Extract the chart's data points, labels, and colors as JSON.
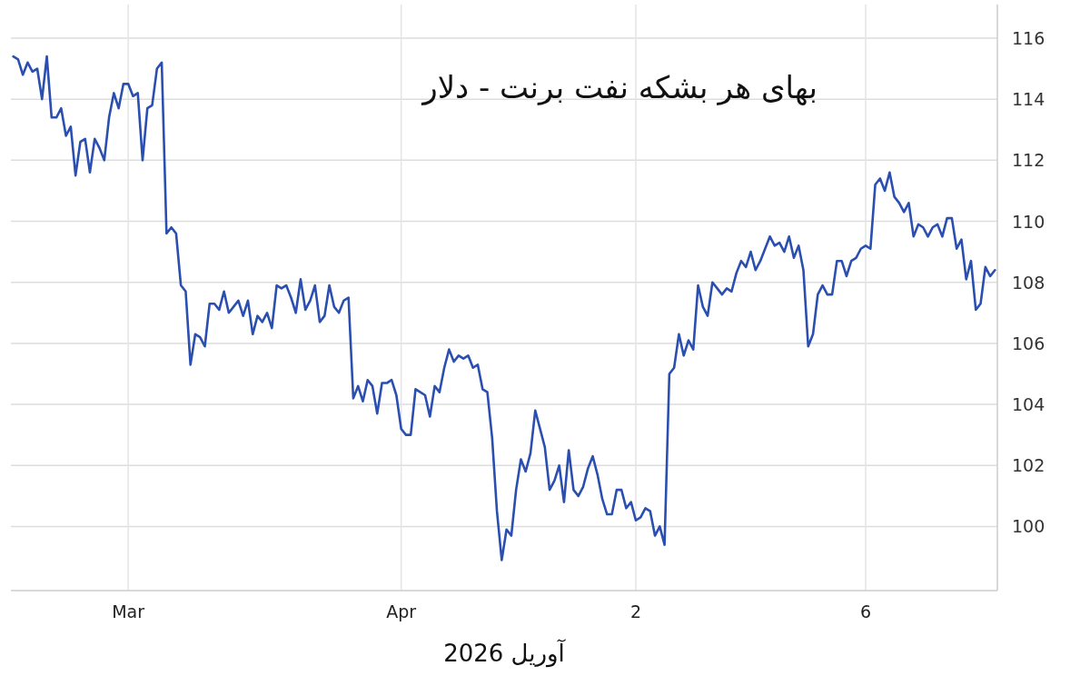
{
  "chart_data": {
    "type": "line",
    "title": "بهای هر بشکه نفت برنت - دلار",
    "xlabel": "آوریل 2026",
    "ylim": [
      97.9,
      117.1
    ],
    "categories": [
      null,
      null,
      null,
      null,
      null,
      null,
      null,
      null,
      null,
      null,
      null,
      null,
      null,
      null,
      null,
      null,
      null,
      null,
      null,
      null,
      null,
      null,
      null,
      null,
      "Mar",
      null,
      null,
      null,
      null,
      null,
      null,
      null,
      null,
      null,
      null,
      null,
      null,
      null,
      null,
      null,
      null,
      null,
      null,
      null,
      null,
      null,
      null,
      null,
      null,
      null,
      null,
      null,
      null,
      null,
      null,
      null,
      null,
      null,
      null,
      null,
      null,
      null,
      null,
      null,
      null,
      null,
      null,
      null,
      null,
      null,
      null,
      null,
      null,
      null,
      null,
      null,
      null,
      null,
      null,
      null,
      null,
      "Apr",
      null,
      null,
      null,
      null,
      null,
      null,
      null,
      null,
      null,
      null,
      null,
      null,
      null,
      null,
      null,
      null,
      null,
      null,
      null,
      null,
      null,
      null,
      null,
      null,
      null,
      null,
      null,
      null,
      null,
      null,
      null,
      null,
      null,
      null,
      null,
      null,
      null,
      null,
      null,
      null,
      null,
      null,
      null,
      null,
      null,
      null,
      null,
      null,
      "2",
      null,
      null,
      null,
      null,
      null,
      null,
      null,
      null,
      null,
      null,
      null,
      null,
      null,
      null,
      null,
      null,
      null,
      null,
      null,
      null,
      null,
      null,
      null,
      null,
      null,
      null,
      null,
      null,
      null,
      null,
      null,
      null,
      null,
      null,
      null,
      null,
      null,
      null,
      null,
      null,
      null,
      null,
      null,
      null,
      null,
      null,
      null,
      "6",
      null,
      null,
      null,
      null,
      null,
      null,
      null,
      null,
      null,
      null,
      null,
      null,
      null,
      null,
      null,
      null,
      null,
      null,
      null,
      null,
      null,
      null,
      null,
      null,
      null,
      null,
      null
    ],
    "yticks": [
      100,
      102,
      104,
      106,
      108,
      110,
      112,
      114,
      116
    ],
    "grid": true,
    "series": [
      {
        "color": "#2a4fb0",
        "values": [
          115.4,
          115.3,
          114.8,
          115.2,
          114.9,
          115.0,
          114.0,
          115.4,
          113.4,
          113.4,
          113.7,
          112.8,
          113.1,
          111.5,
          112.6,
          112.7,
          111.6,
          112.7,
          112.4,
          112.0,
          113.4,
          114.2,
          113.7,
          114.5,
          114.5,
          114.1,
          114.2,
          112.0,
          113.7,
          113.8,
          115.0,
          115.2,
          109.6,
          109.8,
          109.6,
          107.9,
          107.7,
          105.3,
          106.3,
          106.2,
          105.9,
          107.3,
          107.3,
          107.1,
          107.7,
          107.0,
          107.2,
          107.4,
          106.9,
          107.4,
          106.3,
          106.9,
          106.7,
          107.0,
          106.5,
          107.9,
          107.8,
          107.9,
          107.5,
          107.0,
          108.1,
          107.1,
          107.4,
          107.9,
          106.7,
          106.9,
          107.9,
          107.2,
          107.0,
          107.4,
          107.5,
          104.2,
          104.6,
          104.1,
          104.8,
          104.6,
          103.7,
          104.7,
          104.7,
          104.8,
          104.3,
          103.2,
          103.0,
          103.0,
          104.5,
          104.4,
          104.3,
          103.6,
          104.6,
          104.4,
          105.2,
          105.8,
          105.4,
          105.6,
          105.5,
          105.6,
          105.2,
          105.3,
          104.5,
          104.4,
          102.9,
          100.5,
          98.9,
          99.9,
          99.7,
          101.2,
          102.2,
          101.8,
          102.4,
          103.8,
          103.2,
          102.6,
          101.2,
          101.5,
          102.0,
          100.8,
          102.5,
          101.2,
          101.0,
          101.3,
          101.9,
          102.3,
          101.7,
          100.9,
          100.4,
          100.4,
          101.2,
          101.2,
          100.6,
          100.8,
          100.2,
          100.3,
          100.6,
          100.5,
          99.7,
          100.0,
          99.4,
          105.0,
          105.2,
          106.3,
          105.6,
          106.1,
          105.8,
          107.9,
          107.2,
          106.9,
          108.0,
          107.8,
          107.6,
          107.8,
          107.7,
          108.3,
          108.7,
          108.5,
          109.0,
          108.4,
          108.7,
          109.1,
          109.5,
          109.2,
          109.3,
          109.0,
          109.5,
          108.8,
          109.2,
          108.4,
          105.9,
          106.3,
          107.6,
          107.9,
          107.6,
          107.6,
          108.7,
          108.7,
          108.2,
          108.7,
          108.8,
          109.1,
          109.2,
          109.1,
          111.2,
          111.4,
          111.0,
          111.6,
          110.8,
          110.6,
          110.3,
          110.6,
          109.5,
          109.9,
          109.8,
          109.5,
          109.8,
          109.9,
          109.5,
          110.1,
          110.1,
          109.1,
          109.4,
          108.1,
          108.7,
          107.1,
          107.3,
          108.5,
          108.2,
          108.4
        ]
      }
    ]
  }
}
